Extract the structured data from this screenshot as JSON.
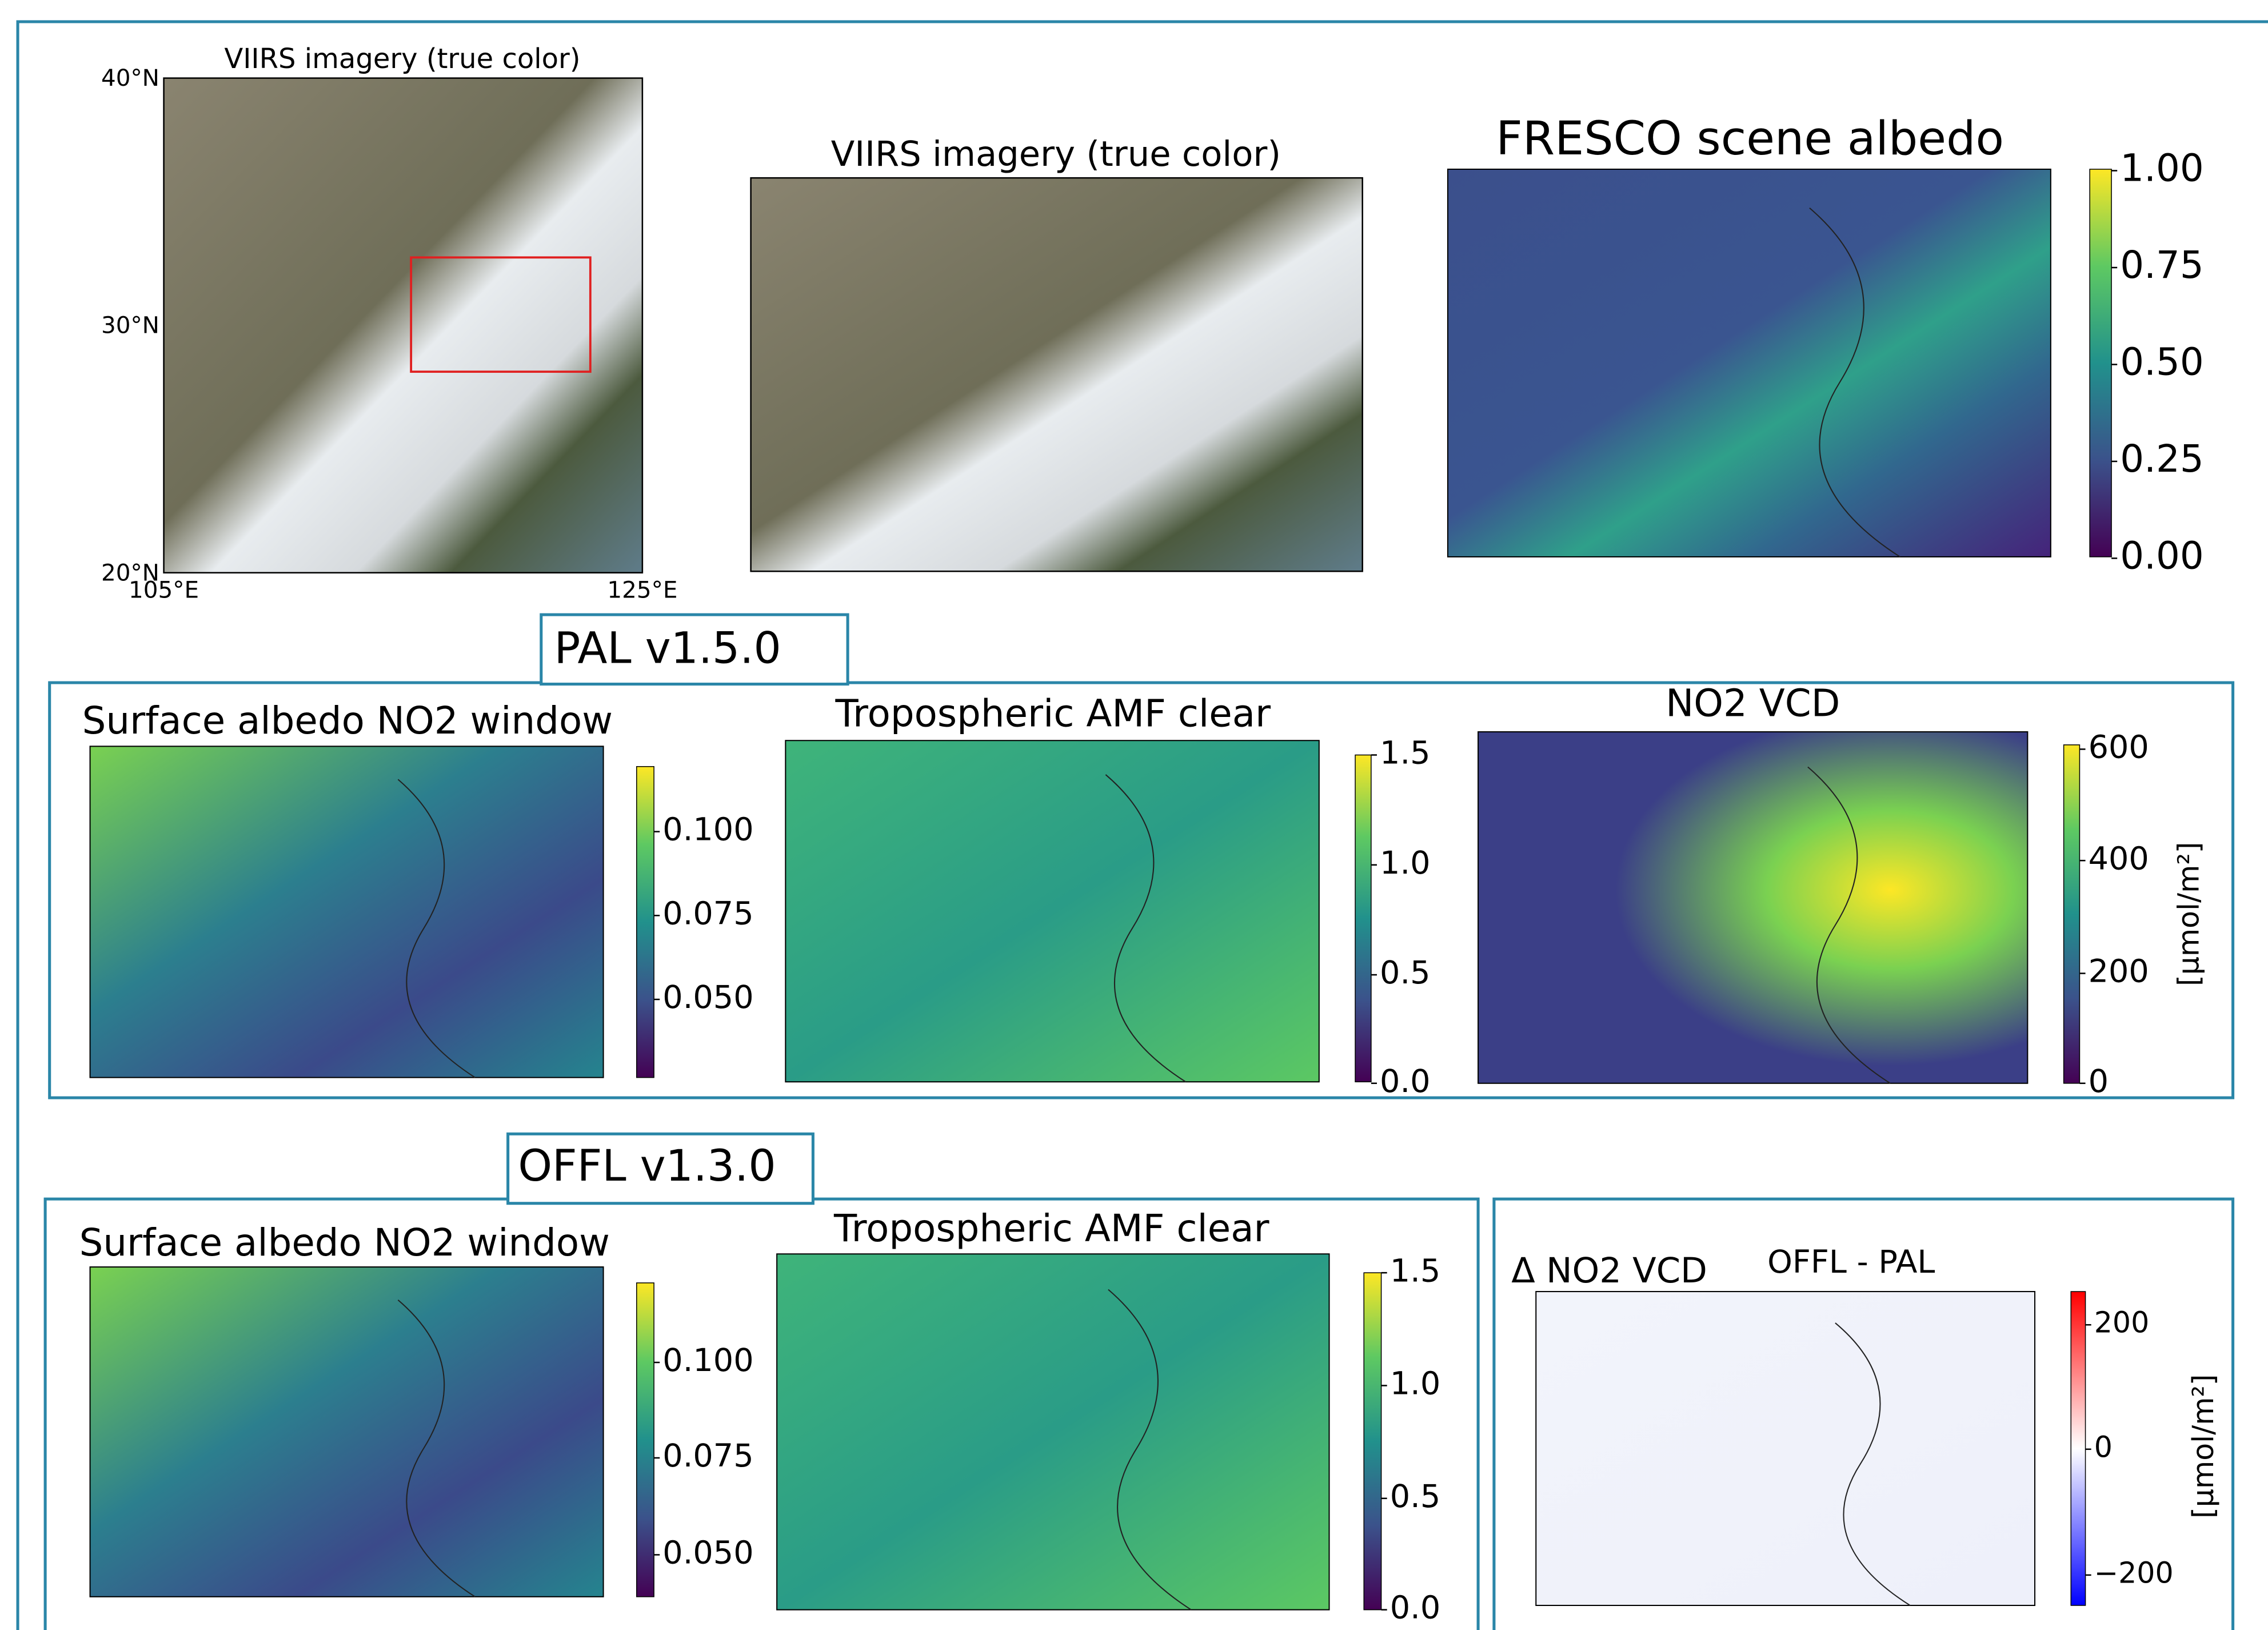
{
  "top": {
    "viirs_overview": {
      "title": "VIIRS imagery (true color)",
      "lat_labels": [
        "40°N",
        "30°N",
        "20°N"
      ],
      "lon_labels": [
        "105°E",
        "125°E"
      ]
    },
    "viirs_zoom": {
      "title": "VIIRS imagery (true color)"
    },
    "fresco": {
      "title": "FRESCO scene albedo",
      "colorbar_ticks": [
        "1.00",
        "0.75",
        "0.50",
        "0.25",
        "0.00"
      ]
    }
  },
  "pal": {
    "label": "PAL v1.5.0",
    "panels": [
      {
        "title": "Surface albedo NO2 window",
        "colorbar_ticks": [
          "0.100",
          "0.075",
          "0.050"
        ]
      },
      {
        "title": "Tropospheric AMF clear",
        "colorbar_ticks": [
          "1.5",
          "1.0",
          "0.5",
          "0.0"
        ]
      },
      {
        "title": "NO2 VCD",
        "colorbar_ticks": [
          "600",
          "400",
          "200",
          "0"
        ],
        "colorbar_label": "[μmol/m²]"
      }
    ]
  },
  "offl": {
    "label": "OFFL  v1.3.0",
    "panels": [
      {
        "title": "Surface albedo NO2 window",
        "colorbar_ticks": [
          "0.100",
          "0.075",
          "0.050"
        ]
      },
      {
        "title": "Tropospheric AMF clear",
        "colorbar_ticks": [
          "1.5",
          "1.0",
          "0.5",
          "0.0"
        ]
      },
      {
        "title": "Δ NO2 VCD",
        "subtitle": "OFFL - PAL",
        "colorbar_ticks": [
          "200",
          "0",
          "−200"
        ],
        "colorbar_label": "[μmol/m²]"
      }
    ]
  }
}
